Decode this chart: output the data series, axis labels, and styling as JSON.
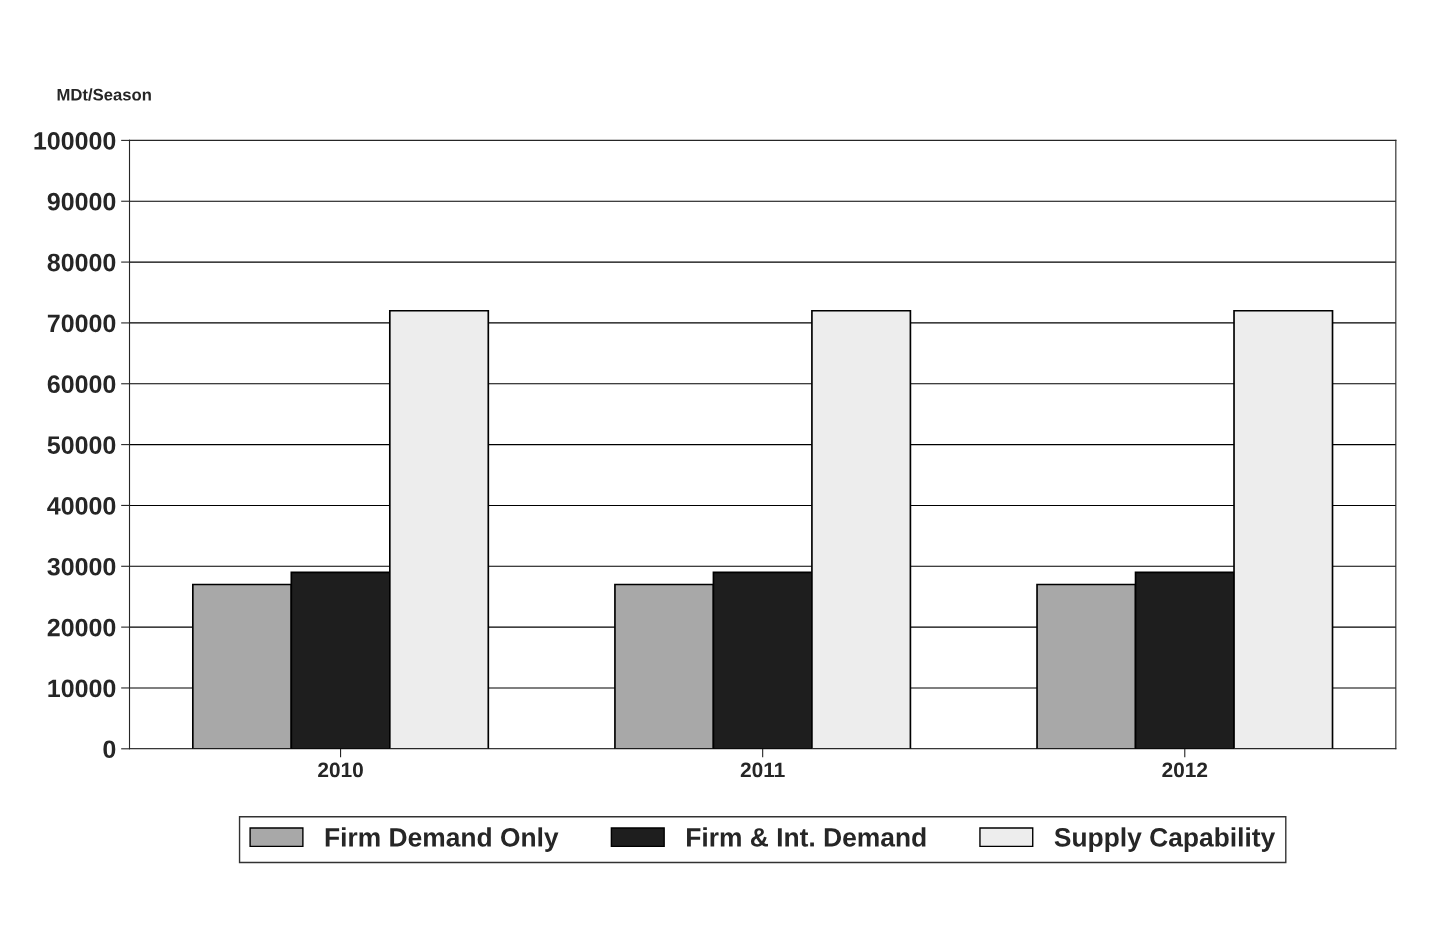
{
  "chart_data": {
    "type": "bar",
    "ylabel": "MDt/Season",
    "categories": [
      "2010",
      "2011",
      "2012"
    ],
    "series": [
      {
        "name": "Firm Demand Only",
        "color": "#a8a8a8",
        "values": [
          27000,
          27000,
          27000
        ]
      },
      {
        "name": "Firm & Int. Demand",
        "color": "#1e1e1e",
        "values": [
          29000,
          29000,
          29000
        ]
      },
      {
        "name": "Supply Capability",
        "color": "#ededed",
        "values": [
          72000,
          72000,
          72000
        ]
      }
    ],
    "ylim": [
      0,
      100000
    ],
    "yticks": [
      0,
      10000,
      20000,
      30000,
      40000,
      50000,
      60000,
      70000,
      80000,
      90000,
      100000
    ],
    "grid": "y",
    "legend": "bottom"
  }
}
